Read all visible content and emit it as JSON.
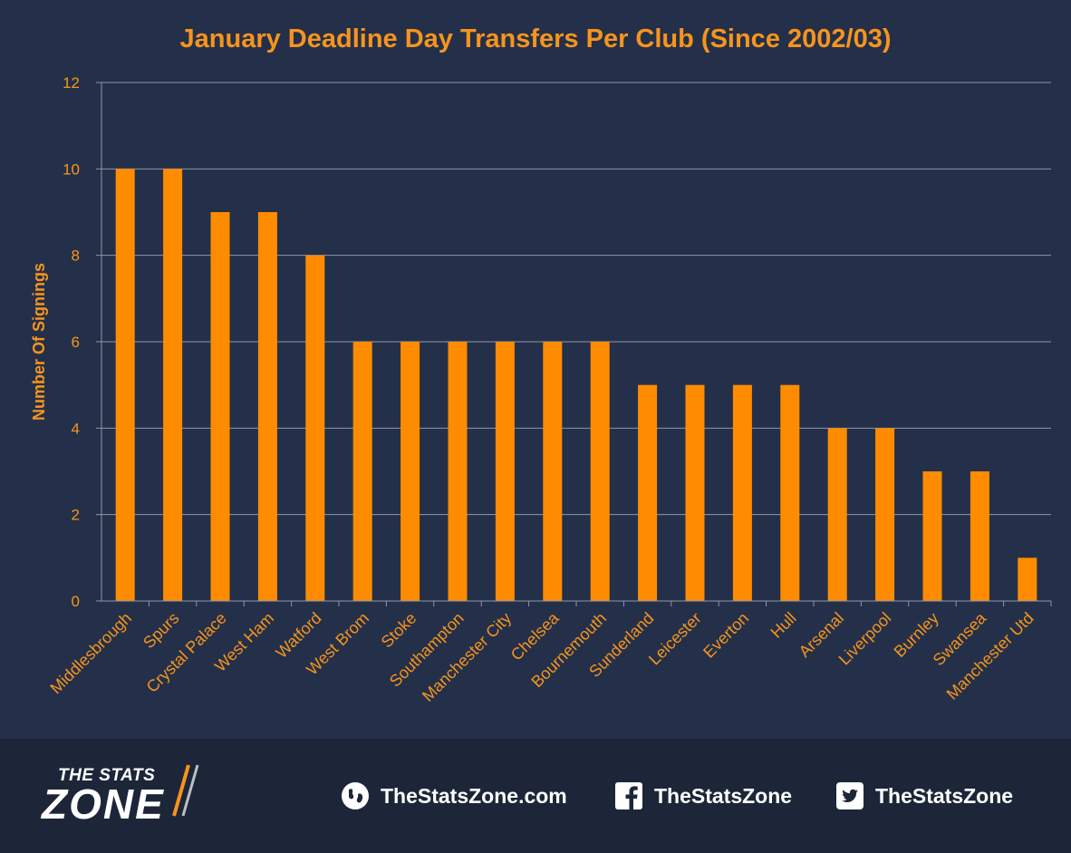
{
  "chart_data": {
    "type": "bar",
    "title": "January Deadline Day Transfers Per Club (Since 2002/03)",
    "xlabel": "",
    "ylabel": "Number Of Signings",
    "ylim": [
      0,
      12
    ],
    "yticks": [
      0,
      2,
      4,
      6,
      8,
      10,
      12
    ],
    "grid": true,
    "categories": [
      "Middlesbrough",
      "Spurs",
      "Crystal Palace",
      "West Ham",
      "Watford",
      "West Brom",
      "Stoke",
      "Southampton",
      "Manchester City",
      "Chelsea",
      "Bournemouth",
      "Sunderland",
      "Leicester",
      "Everton",
      "Hull",
      "Arsenal",
      "Liverpool",
      "Burnley",
      "Swansea",
      "Manchester Utd"
    ],
    "values": [
      10,
      10,
      9,
      9,
      8,
      6,
      6,
      6,
      6,
      6,
      6,
      5,
      5,
      5,
      5,
      4,
      4,
      3,
      3,
      1
    ],
    "colors": {
      "bar": "#ff8c00",
      "text": "#f7941d",
      "grid": "#8e96a6",
      "background": "#243049"
    }
  },
  "footer": {
    "brand_line1": "THE STATS",
    "brand_line2": "ZONE",
    "website": "TheStatsZone.com",
    "facebook": "TheStatsZone",
    "twitter": "TheStatsZone",
    "icons": [
      "globe-icon",
      "facebook-icon",
      "twitter-icon"
    ]
  }
}
